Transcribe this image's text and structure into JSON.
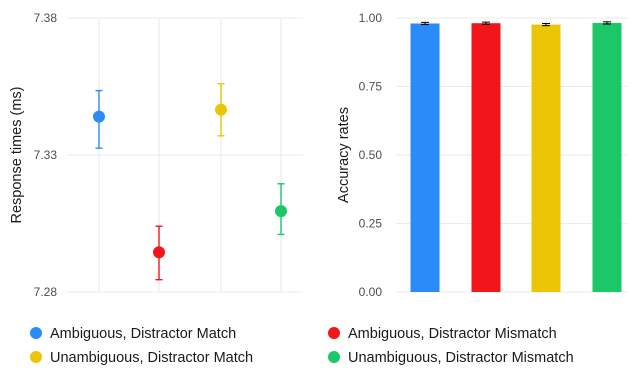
{
  "chart_data": [
    {
      "type": "scatter",
      "ylabel": "Response times (ms)",
      "xlabel": "",
      "ylim": [
        7.28,
        7.38
      ],
      "yticks": [
        "7.28",
        "7.33",
        "7.38"
      ],
      "yticks_values": [
        7.28,
        7.33,
        7.38
      ],
      "grid": true,
      "series": [
        {
          "name": "Ambiguous, Distractor Match",
          "color": "#2B8CF7",
          "mean": 7.344,
          "ci": [
            7.3325,
            7.3535
          ]
        },
        {
          "name": "Ambiguous, Distractor Mismatch",
          "color": "#F0161A",
          "mean": 7.2945,
          "ci": [
            7.2845,
            7.304
          ]
        },
        {
          "name": "Unambiguous, Distractor Match",
          "color": "#EBC506",
          "mean": 7.3465,
          "ci": [
            7.337,
            7.356
          ]
        },
        {
          "name": "Unambiguous, Distractor Mismatch",
          "color": "#1BC766",
          "mean": 7.3095,
          "ci": [
            7.301,
            7.3195
          ]
        }
      ]
    },
    {
      "type": "bar",
      "ylabel": "Accuracy rates",
      "xlabel": "",
      "ylim": [
        0,
        1
      ],
      "yticks": [
        "0.00",
        "0.25",
        "0.50",
        "0.75",
        "1.00"
      ],
      "yticks_values": [
        0,
        0.25,
        0.5,
        0.75,
        1.0
      ],
      "grid": true,
      "series": [
        {
          "name": "Ambiguous, Distractor Match",
          "color": "#2B8CF7",
          "value": 0.98,
          "ci": [
            0.976,
            0.984
          ]
        },
        {
          "name": "Ambiguous, Distractor Mismatch",
          "color": "#F0161A",
          "value": 0.981,
          "ci": [
            0.977,
            0.985
          ]
        },
        {
          "name": "Unambiguous, Distractor Match",
          "color": "#EBC506",
          "value": 0.976,
          "ci": [
            0.972,
            0.98
          ]
        },
        {
          "name": "Unambiguous, Distractor Mismatch",
          "color": "#1BC766",
          "value": 0.982,
          "ci": [
            0.978,
            0.986
          ]
        }
      ]
    }
  ],
  "legend": {
    "placement": "bottom",
    "items": [
      {
        "label": "Ambiguous, Distractor Match",
        "color": "#2B8CF7"
      },
      {
        "label": "Ambiguous, Distractor Mismatch",
        "color": "#F0161A"
      },
      {
        "label": "Unambiguous, Distractor Match",
        "color": "#EBC506"
      },
      {
        "label": "Unambiguous, Distractor Mismatch",
        "color": "#1BC766"
      }
    ]
  }
}
